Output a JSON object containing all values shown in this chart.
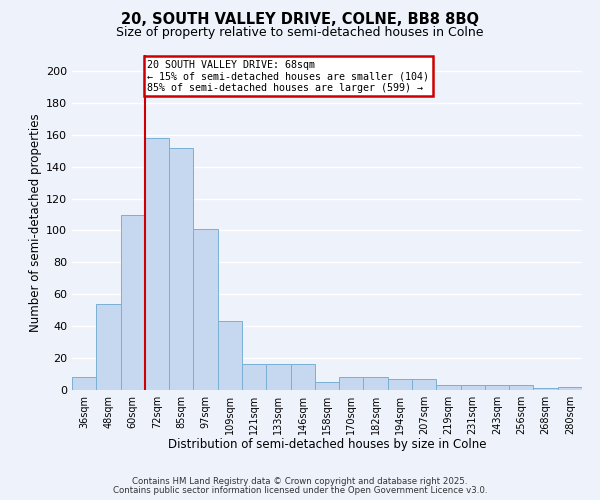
{
  "title": "20, SOUTH VALLEY DRIVE, COLNE, BB8 8BQ",
  "subtitle": "Size of property relative to semi-detached houses in Colne",
  "xlabel": "Distribution of semi-detached houses by size in Colne",
  "ylabel": "Number of semi-detached properties",
  "categories": [
    "36sqm",
    "48sqm",
    "60sqm",
    "72sqm",
    "85sqm",
    "97sqm",
    "109sqm",
    "121sqm",
    "133sqm",
    "146sqm",
    "158sqm",
    "170sqm",
    "182sqm",
    "194sqm",
    "207sqm",
    "219sqm",
    "231sqm",
    "243sqm",
    "256sqm",
    "268sqm",
    "280sqm"
  ],
  "values": [
    8,
    54,
    110,
    158,
    152,
    101,
    43,
    16,
    16,
    16,
    5,
    8,
    8,
    7,
    7,
    3,
    3,
    3,
    3,
    1,
    2
  ],
  "bar_color": "#c5d8f0",
  "bar_edge_color": "#7ab0d4",
  "vline_x": 2.5,
  "vline_color": "#cc0000",
  "annotation_title": "20 SOUTH VALLEY DRIVE: 68sqm",
  "annotation_line1": "← 15% of semi-detached houses are smaller (104)",
  "annotation_line2": "85% of semi-detached houses are larger (599) →",
  "annotation_box_facecolor": "#ffffff",
  "annotation_box_edgecolor": "#cc0000",
  "ylim": [
    0,
    210
  ],
  "yticks": [
    0,
    20,
    40,
    60,
    80,
    100,
    120,
    140,
    160,
    180,
    200
  ],
  "footnote1": "Contains HM Land Registry data © Crown copyright and database right 2025.",
  "footnote2": "Contains public sector information licensed under the Open Government Licence v3.0.",
  "background_color": "#eef3fb",
  "grid_color": "#ffffff"
}
